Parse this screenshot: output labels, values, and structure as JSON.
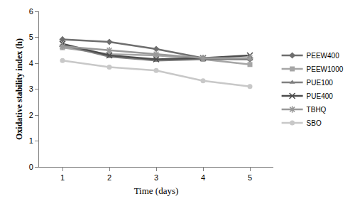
{
  "chart_data": {
    "type": "line",
    "x_label": "Time (days)",
    "y_label": "Oxidative stability index (h)",
    "categories": [
      "1",
      "2",
      "3",
      "4",
      "5"
    ],
    "series": [
      {
        "name": "PEEW400",
        "color": "#6e6e6e",
        "marker": "diamond",
        "values": [
          4.92,
          4.82,
          4.55,
          4.2,
          4.15
        ]
      },
      {
        "name": "PEEW1000",
        "color": "#a6a6a6",
        "marker": "square",
        "values": [
          4.6,
          4.35,
          4.3,
          4.15,
          3.95
        ]
      },
      {
        "name": "PUE100",
        "color": "#808080",
        "marker": "triangle-up",
        "values": [
          4.7,
          4.25,
          4.1,
          4.15,
          4.15
        ]
      },
      {
        "name": "PUE400",
        "color": "#4d4d4d",
        "marker": "x-thin-open",
        "values": [
          4.75,
          4.3,
          4.15,
          4.2,
          4.3
        ]
      },
      {
        "name": "TBHQ",
        "color": "#999999",
        "marker": "asterisk-open",
        "values": [
          4.65,
          4.5,
          4.35,
          4.2,
          4.2
        ]
      },
      {
        "name": "SBO",
        "color": "#c8c8c8",
        "marker": "circle",
        "values": [
          4.1,
          3.85,
          3.72,
          3.32,
          3.1
        ]
      }
    ],
    "ylim": [
      0,
      6
    ],
    "yticks": [
      0,
      1,
      2,
      3,
      4,
      5,
      6
    ],
    "grid": false,
    "legend": "right"
  }
}
